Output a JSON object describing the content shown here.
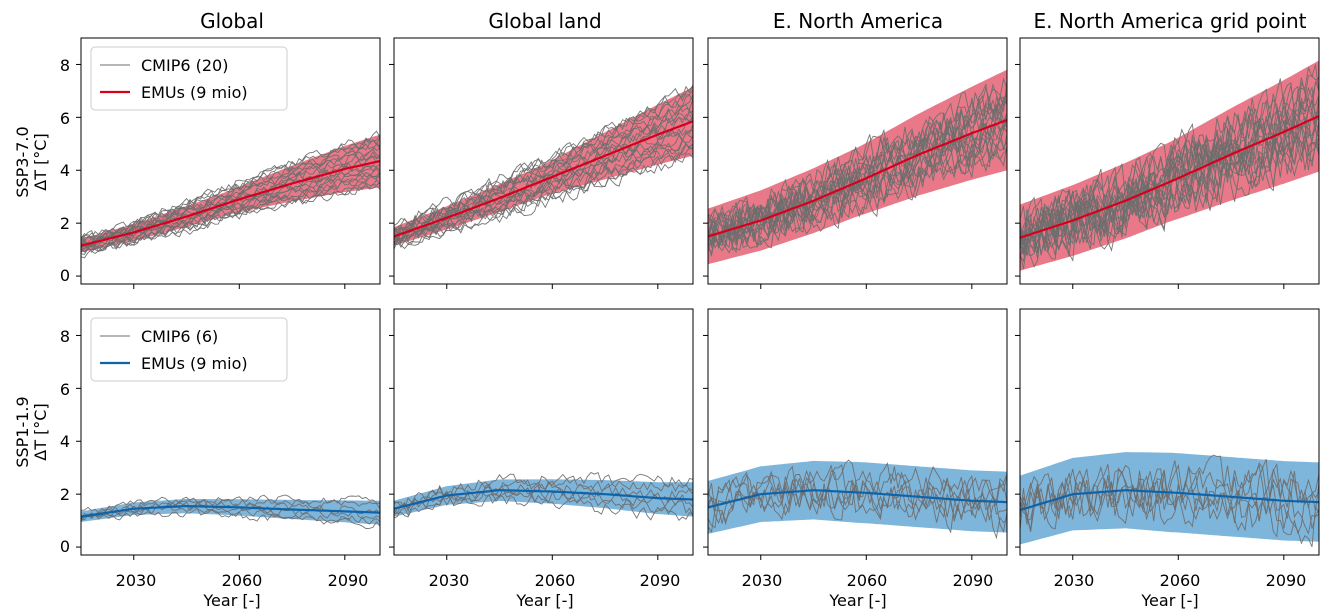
{
  "colors": {
    "cmip": "#6e6e6e",
    "ssp370_line": "#d6001c",
    "ssp370_band": "#e0455a",
    "ssp119_line": "#0f63a8",
    "ssp119_band": "#5aa0cf"
  },
  "panel_titles": [
    "Global",
    "Global land",
    "E. North America",
    "E. North America grid point"
  ],
  "rows": [
    {
      "label_line1": "SSP3-7.0",
      "label_line2": "ΔT [°C]",
      "legend": [
        "CMIP6 (20)",
        "EMUs (9 mio)"
      ]
    },
    {
      "label_line1": "SSP1-1.9",
      "label_line2": "ΔT [°C]",
      "legend": [
        "CMIP6 (6)",
        "EMUs (9 mio)"
      ]
    }
  ],
  "x_tick_labels": [
    "2030",
    "2060",
    "2090"
  ],
  "y_tick_labels": [
    "0",
    "2",
    "4",
    "6",
    "8"
  ],
  "xlabel": "Year [-]",
  "chart_data": {
    "type": "line",
    "layout": "2 rows x 4 columns of panels, shared axes",
    "xlim": [
      2015,
      2100
    ],
    "ylim": [
      -0.3,
      9
    ],
    "x_ticks": [
      2030,
      2060,
      2090
    ],
    "y_ticks": [
      0,
      2,
      4,
      6,
      8
    ],
    "xlabel": "Year [-]",
    "legend_position": "upper-left of first column",
    "grid": false,
    "scenarios": [
      {
        "name": "SSP3-7.0",
        "panels": [
          {
            "title": "Global",
            "emu_median": {
              "x": [
                2015,
                2030,
                2045,
                2060,
                2075,
                2090,
                2100
              ],
              "y": [
                1.15,
                1.65,
                2.25,
                2.9,
                3.5,
                4.05,
                4.35
              ]
            },
            "emu_band_half_width": [
              0.25,
              0.45,
              1.0
            ],
            "cmip_models": 20,
            "cmip_spread_end": 2.0,
            "cmip_noise": 0.18
          },
          {
            "title": "Global land",
            "emu_median": {
              "x": [
                2015,
                2030,
                2045,
                2060,
                2075,
                2090,
                2100
              ],
              "y": [
                1.5,
                2.2,
                2.95,
                3.75,
                4.55,
                5.35,
                5.85
              ]
            },
            "emu_band_half_width": [
              0.35,
              0.6,
              1.3
            ],
            "cmip_models": 20,
            "cmip_spread_end": 2.6,
            "cmip_noise": 0.25
          },
          {
            "title": "E. North America",
            "emu_median": {
              "x": [
                2015,
                2030,
                2045,
                2060,
                2075,
                2090,
                2100
              ],
              "y": [
                1.5,
                2.1,
                2.85,
                3.7,
                4.6,
                5.4,
                5.9
              ]
            },
            "emu_band_half_width": [
              1.05,
              1.3,
              1.9
            ],
            "cmip_models": 20,
            "cmip_spread_end": 2.4,
            "cmip_noise": 0.65
          },
          {
            "title": "E. North America grid point",
            "emu_median": {
              "x": [
                2015,
                2030,
                2045,
                2060,
                2075,
                2090,
                2100
              ],
              "y": [
                1.45,
                2.1,
                2.85,
                3.7,
                4.6,
                5.45,
                6.05
              ]
            },
            "emu_band_half_width": [
              1.25,
              1.5,
              2.1
            ],
            "cmip_models": 20,
            "cmip_spread_end": 2.6,
            "cmip_noise": 0.85
          }
        ]
      },
      {
        "name": "SSP1-1.9",
        "panels": [
          {
            "title": "Global",
            "emu_median": {
              "x": [
                2015,
                2030,
                2045,
                2060,
                2075,
                2090,
                2100
              ],
              "y": [
                1.15,
                1.45,
                1.55,
                1.5,
                1.42,
                1.35,
                1.3
              ]
            },
            "emu_band_half_width": [
              0.2,
              0.3,
              0.45
            ],
            "cmip_models": 6,
            "cmip_spread_end": 0.9,
            "cmip_noise": 0.15
          },
          {
            "title": "Global land",
            "emu_median": {
              "x": [
                2015,
                2030,
                2045,
                2060,
                2075,
                2090,
                2100
              ],
              "y": [
                1.45,
                1.95,
                2.15,
                2.1,
                2.0,
                1.85,
                1.8
              ]
            },
            "emu_band_half_width": [
              0.3,
              0.45,
              0.65
            ],
            "cmip_models": 6,
            "cmip_spread_end": 1.3,
            "cmip_noise": 0.25
          },
          {
            "title": "E. North America",
            "emu_median": {
              "x": [
                2015,
                2030,
                2045,
                2060,
                2075,
                2090,
                2100
              ],
              "y": [
                1.5,
                2.0,
                2.15,
                2.05,
                1.9,
                1.75,
                1.7
              ]
            },
            "emu_band_half_width": [
              1.0,
              1.15,
              1.15
            ],
            "cmip_models": 6,
            "cmip_spread_end": 1.2,
            "cmip_noise": 0.65
          },
          {
            "title": "E. North America grid point",
            "emu_median": {
              "x": [
                2015,
                2030,
                2045,
                2060,
                2075,
                2090,
                2100
              ],
              "y": [
                1.4,
                2.0,
                2.15,
                2.05,
                1.9,
                1.75,
                1.7
              ]
            },
            "emu_band_half_width": [
              1.3,
              1.5,
              1.5
            ],
            "cmip_models": 6,
            "cmip_spread_end": 1.3,
            "cmip_noise": 0.85
          }
        ]
      }
    ]
  }
}
